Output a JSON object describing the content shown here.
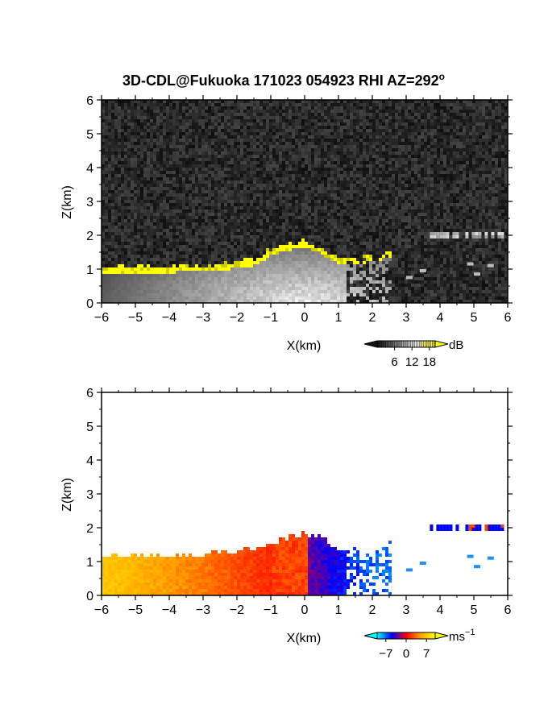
{
  "title": "3D-CDL@Fukuoka 171023 054923 RHI AZ=292",
  "title_superscript": "o",
  "chart_data": [
    {
      "type": "heatmap",
      "panel": "reflectivity",
      "xlabel": "X(km)",
      "ylabel": "Z(km)",
      "xlim": [
        -6,
        6
      ],
      "ylim": [
        0,
        6
      ],
      "x_ticks": [
        -6,
        -5,
        -4,
        -3,
        -2,
        -1,
        0,
        1,
        2,
        3,
        4,
        5,
        6
      ],
      "y_ticks": [
        0,
        1,
        2,
        3,
        4,
        5,
        6
      ],
      "grid": false,
      "colorbar": {
        "unit": "dB",
        "ticks": [
          6,
          12,
          18
        ],
        "range": [
          0,
          20
        ],
        "colors": [
          "#111111",
          "#888888",
          "#ffffff",
          "#ffff00"
        ]
      },
      "features": {
        "noise_background": "#1a1a1a",
        "boundary_layer_top_km": [
          [
            -6,
            1.0
          ],
          [
            -4,
            1.0
          ],
          [
            -2.5,
            1.05
          ],
          [
            -1.5,
            1.2
          ],
          [
            -1,
            1.5
          ],
          [
            -0.5,
            1.65
          ],
          [
            0,
            1.75
          ],
          [
            0.5,
            1.55
          ],
          [
            1,
            1.25
          ],
          [
            2,
            1.3
          ],
          [
            2.6,
            1.5
          ]
        ],
        "elevated_layer": {
          "x_from": 3.7,
          "x_to": 5.9,
          "z": 2.0
        }
      }
    },
    {
      "type": "heatmap",
      "panel": "doppler_velocity",
      "xlabel": "X(km)",
      "ylabel": "Z(km)",
      "xlim": [
        -6,
        6
      ],
      "ylim": [
        0,
        6
      ],
      "x_ticks": [
        -6,
        -5,
        -4,
        -3,
        -2,
        -1,
        0,
        1,
        2,
        3,
        4,
        5,
        6
      ],
      "y_ticks": [
        0,
        1,
        2,
        3,
        4,
        5,
        6
      ],
      "grid": false,
      "colorbar": {
        "unit": "ms",
        "unit_superscript": "−1",
        "ticks": [
          "−7",
          "0",
          "7"
        ],
        "range": [
          -10,
          10
        ],
        "colors": [
          "#00ffff",
          "#0000ff",
          "#ff0000",
          "#ffa500",
          "#ffff00"
        ]
      },
      "features": {
        "boundary_layer_top_km": [
          [
            -6,
            1.05
          ],
          [
            -4,
            1.1
          ],
          [
            -2.5,
            1.15
          ],
          [
            -1.5,
            1.3
          ],
          [
            -1,
            1.45
          ],
          [
            -0.5,
            1.6
          ],
          [
            0,
            1.75
          ],
          [
            0.5,
            1.6
          ],
          [
            1,
            1.3
          ],
          [
            2,
            1.2
          ],
          [
            2.6,
            1.5
          ]
        ],
        "elevated_layer": {
          "x_from": 3.7,
          "x_to": 5.9,
          "z": 2.0
        }
      }
    }
  ]
}
